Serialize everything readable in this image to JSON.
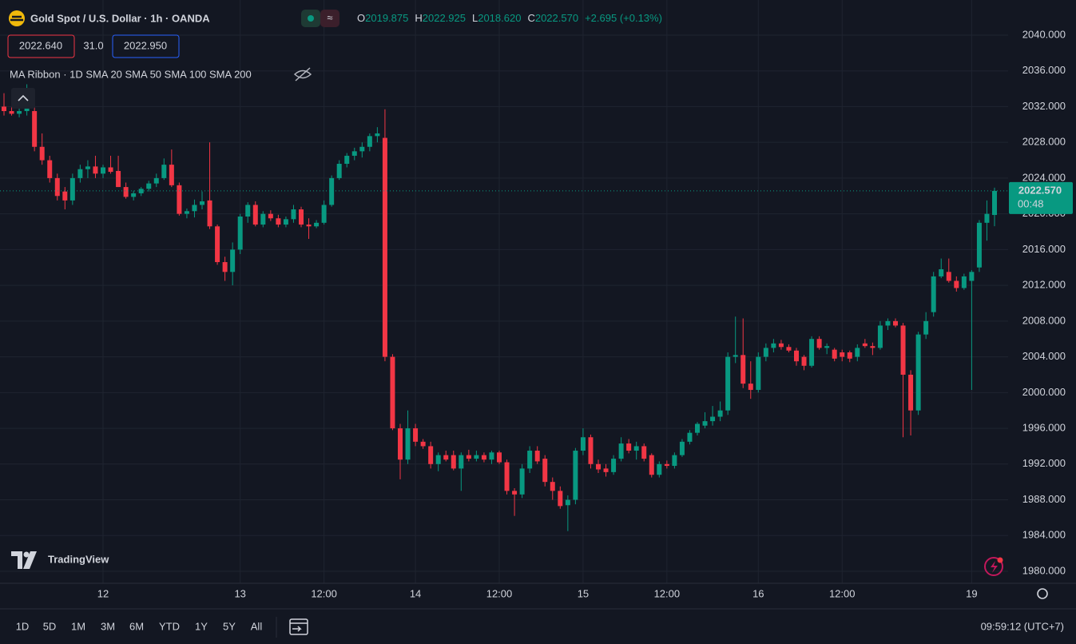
{
  "chart_data": {
    "type": "candlestick",
    "header": {
      "symbol": "Gold Spot / U.S. Dollar · 1h · OANDA",
      "ohlc": [
        {
          "key": "O",
          "value": "2019.875"
        },
        {
          "key": "H",
          "value": "2022.925"
        },
        {
          "key": "L",
          "value": "2018.620"
        },
        {
          "key": "C",
          "value": "2022.570"
        }
      ],
      "change": "+2.695 (+0.13%)",
      "bid": "2022.640",
      "spread": "31.0",
      "ask": "2022.950",
      "indicator": "MA Ribbon · 1D SMA 20 SMA 50 SMA 100 SMA 200"
    },
    "last_price_label": "2022.570",
    "countdown": "00:48",
    "logo": "TradingView",
    "ranges": [
      "1D",
      "5D",
      "1M",
      "3M",
      "6M",
      "YTD",
      "1Y",
      "5Y",
      "All"
    ],
    "clock": "09:59:12 (UTC+7)",
    "up_color": "#089981",
    "down_color": "#f23645",
    "grid": true,
    "categories": [
      null,
      null,
      null,
      null,
      null,
      null,
      null,
      null,
      null,
      null,
      null,
      null,
      null,
      "12",
      null,
      null,
      null,
      null,
      null,
      null,
      null,
      null,
      null,
      null,
      null,
      null,
      null,
      null,
      null,
      null,
      null,
      "13",
      null,
      null,
      null,
      null,
      null,
      null,
      null,
      null,
      null,
      null,
      "12:00",
      null,
      null,
      null,
      null,
      null,
      null,
      null,
      null,
      null,
      null,
      null,
      "14",
      null,
      null,
      null,
      null,
      null,
      null,
      null,
      null,
      null,
      null,
      "12:00",
      null,
      null,
      null,
      null,
      null,
      null,
      null,
      null,
      null,
      null,
      "15",
      null,
      null,
      null,
      null,
      null,
      null,
      null,
      null,
      null,
      null,
      "12:00",
      null,
      null,
      null,
      null,
      null,
      null,
      null,
      null,
      null,
      null,
      null,
      "16",
      null,
      null,
      null,
      null,
      null,
      null,
      null,
      null,
      null,
      null,
      "12:00",
      null,
      null,
      null,
      null,
      null,
      null,
      null,
      null,
      null,
      null,
      null,
      null,
      null,
      null,
      null,
      null,
      "19",
      null,
      null,
      null
    ],
    "open": [
      2032,
      2031.5,
      2031.2,
      2031.5,
      2031.5,
      2027.5,
      2026,
      2024,
      2022.5,
      2021.5,
      2024,
      2025,
      2025.3,
      2024.5,
      2025.2,
      2024.8,
      2023,
      2021.9,
      2022.3,
      2022.8,
      2023.4,
      2024,
      2025.5,
      2023.2,
      2020,
      2020.3,
      2021,
      2021.5,
      2018.6,
      2014.6,
      2013.5,
      2016,
      2019.7,
      2021,
      2018.8,
      2020,
      2019.5,
      2018.8,
      2019.4,
      2020.5,
      2018.8,
      2018.6,
      2019,
      2021,
      2024,
      2025.6,
      2026.5,
      2027,
      2027.5,
      2028.7,
      2028.5,
      2004,
      1996,
      1992.5,
      1996,
      1994.5,
      1994,
      1992,
      1993,
      1993,
      1991.5,
      1993,
      1992.6,
      1993,
      1992.5,
      1993.3,
      1992.2,
      1989,
      1988.6,
      1991.5,
      1993.5,
      1992.6,
      1990,
      1989,
      1987.4,
      1988,
      1993.5,
      1995,
      1992,
      1991.5,
      1991.1,
      1992.6,
      1994.3,
      1993.5,
      1994,
      1993,
      1990.8,
      1992,
      1991.8,
      1993,
      1994.5,
      1995.5,
      1996.3,
      1996.8,
      1997.3,
      1998,
      2004,
      2004.2,
      2001,
      2000.3,
      2004,
      2005,
      2005.5,
      2005.1,
      2004.7,
      2004,
      2003,
      2006,
      2005,
      2004.8,
      2004.5,
      2004.5,
      2004,
      2005.5,
      2005.2,
      2005,
      2007.5,
      2008,
      2007.5,
      2002,
      1998,
      2006.5,
      2009,
      2013,
      2013.5,
      2012.5,
      2011.7,
      2012.5,
      2014,
      2019,
      2019.875
    ],
    "high": [
      2033.5,
      2032.5,
      2032,
      2034.5,
      2032,
      2029,
      2026.5,
      2024.5,
      2023,
      2024.5,
      2025.5,
      2026,
      2026.5,
      2025.5,
      2026.5,
      2026.5,
      2023.5,
      2022.6,
      2023,
      2023.7,
      2024.5,
      2026.2,
      2027.2,
      2023.5,
      2020.6,
      2021.6,
      2022.5,
      2028,
      2018.8,
      2015.2,
      2016.8,
      2020,
      2021.3,
      2021.4,
      2020.3,
      2020.4,
      2019.9,
      2019.7,
      2021,
      2020.8,
      2019.5,
      2019.3,
      2021.5,
      2024.3,
      2026,
      2026.8,
      2027.4,
      2028,
      2029,
      2029.7,
      2031.7,
      2004.3,
      1996.5,
      1998,
      1996.5,
      1994.8,
      1994.5,
      1993.3,
      1993.5,
      1993.5,
      1993.3,
      1993.6,
      1993.5,
      1993.3,
      1993.5,
      1993.5,
      1992.5,
      1989.3,
      1992,
      1994,
      1994,
      1993,
      1990.5,
      1989.5,
      1988.5,
      1993.8,
      1996,
      1995.3,
      1992.5,
      1992,
      1993,
      1995,
      1994.8,
      1994.5,
      1994.3,
      1993.2,
      1992.3,
      1992.4,
      1993.3,
      1994.8,
      1995.8,
      1996.7,
      1997.8,
      1998.5,
      1999,
      2004.5,
      2008.5,
      2008.3,
      2003.5,
      2004.5,
      2005.5,
      2006,
      2005.9,
      2005.4,
      2005,
      2004.2,
      2006.3,
      2006.3,
      2005.5,
      2005,
      2004.8,
      2004.7,
      2005.4,
      2006,
      2005.6,
      2008,
      2008.3,
      2008.3,
      2007.8,
      2002.5,
      2006.8,
      2009,
      2013.5,
      2015,
      2015,
      2013,
      2013.3,
      2013.7,
      2019.3,
      2021.5,
      2022.925
    ],
    "low": [
      2031,
      2031,
      2030.8,
      2031,
      2027,
      2025.5,
      2023.5,
      2021.5,
      2020.5,
      2021,
      2023.5,
      2024,
      2024,
      2024,
      2024.5,
      2023,
      2021.7,
      2021.5,
      2022,
      2022.5,
      2023,
      2023.8,
      2023,
      2019.8,
      2019.5,
      2019.6,
      2020.5,
      2018.3,
      2014.3,
      2012.5,
      2012,
      2015.5,
      2019,
      2018.6,
      2018.5,
      2019.2,
      2018.5,
      2018.5,
      2019,
      2018.5,
      2017.2,
      2018.4,
      2018.8,
      2020.8,
      2023.8,
      2025.2,
      2026,
      2026.3,
      2027,
      2028,
      2003.5,
      1995.8,
      1990.3,
      1992,
      1994,
      1993.7,
      1991.5,
      1991.2,
      1992.3,
      1991.3,
      1989,
      1992.3,
      1992.3,
      1992.2,
      1992,
      1992,
      1988.6,
      1986.2,
      1988.2,
      1991,
      1992,
      1989.5,
      1988,
      1987,
      1984.5,
      1987.5,
      1993,
      1991.5,
      1991,
      1990.6,
      1990.8,
      1992.3,
      1993.2,
      1992.5,
      1992.3,
      1990.5,
      1990.5,
      1991.5,
      1991.5,
      1992.8,
      1994.2,
      1995.2,
      1996,
      1996.3,
      1996.8,
      1997.5,
      2003.3,
      2000.5,
      1999.3,
      2000,
      2003.5,
      2004.5,
      2004.8,
      2004.5,
      2003,
      2002.5,
      2002.8,
      2004.8,
      2004.3,
      2003.5,
      2003.5,
      2003.4,
      2003.5,
      2005,
      2004.2,
      2004.8,
      2007,
      2007.3,
      1995,
      1995.2,
      1997.5,
      2006,
      2008.5,
      2012.8,
      2012.3,
      2011.3,
      2011.5,
      2000.3,
      2013.5,
      2017,
      2018.62
    ],
    "close": [
      2031.5,
      2031.2,
      2031.5,
      2032,
      2027.5,
      2026,
      2024,
      2022,
      2021.5,
      2024,
      2025,
      2025.3,
      2024.5,
      2025.2,
      2024.7,
      2023,
      2021.9,
      2022.3,
      2022.8,
      2023.4,
      2024,
      2025.5,
      2023.2,
      2020,
      2020.3,
      2021,
      2021.4,
      2018.6,
      2014.6,
      2013.5,
      2016,
      2019.7,
      2021,
      2018.8,
      2020,
      2019.5,
      2018.8,
      2019.4,
      2020.5,
      2018.8,
      2018.6,
      2019,
      2021,
      2024,
      2025.6,
      2026.5,
      2027,
      2027.5,
      2028.7,
      2029,
      2004,
      1996,
      1992.5,
      1996,
      1994.5,
      1994,
      1992,
      1993,
      1992.5,
      1991.5,
      1993,
      1992.6,
      1993,
      1992.5,
      1993.3,
      1992.2,
      1989,
      1988.6,
      1991.5,
      1993.5,
      1992.3,
      1990,
      1989,
      1987.3,
      1988,
      1993.5,
      1995,
      1992,
      1991.4,
      1991.1,
      1992.6,
      1994.3,
      1993.5,
      1994,
      1992.6,
      1990.8,
      1992,
      1991.8,
      1993,
      1994.5,
      1995.5,
      1996.5,
      1996.8,
      1997.3,
      1998,
      2004,
      2004.2,
      2001,
      2000.3,
      2004,
      2005,
      2005.5,
      2005.1,
      2004.7,
      2003.5,
      2003,
      2006,
      2005,
      2005.2,
      2003.8,
      2004,
      2003.8,
      2005,
      2005.2,
      2005,
      2007.5,
      2008,
      2007.5,
      2002,
      1998,
      2006.5,
      2008,
      2013,
      2013.8,
      2012.5,
      2011.7,
      2013,
      2013.5,
      2019,
      2020,
      2022.57
    ],
    "ylim": [
      1978.66,
      2043.93
    ],
    "yticks": [
      {
        "value": 1980,
        "label": "1980.000"
      },
      {
        "value": 1984,
        "label": "1984.000"
      },
      {
        "value": 1988,
        "label": "1988.000"
      },
      {
        "value": 1992,
        "label": "1992.000"
      },
      {
        "value": 1996,
        "label": "1996.000"
      },
      {
        "value": 2000,
        "label": "2000.000"
      },
      {
        "value": 2004,
        "label": "2004.000"
      },
      {
        "value": 2008,
        "label": "2008.000"
      },
      {
        "value": 2012,
        "label": "2012.000"
      },
      {
        "value": 2016,
        "label": "2016.000"
      },
      {
        "value": 2020,
        "label": "2020.000"
      },
      {
        "value": 2024,
        "label": "2024.000"
      },
      {
        "value": 2028,
        "label": "2028.000"
      },
      {
        "value": 2032,
        "label": "2032.000"
      },
      {
        "value": 2036,
        "label": "2036.000"
      },
      {
        "value": 2040,
        "label": "2040.000"
      }
    ]
  }
}
